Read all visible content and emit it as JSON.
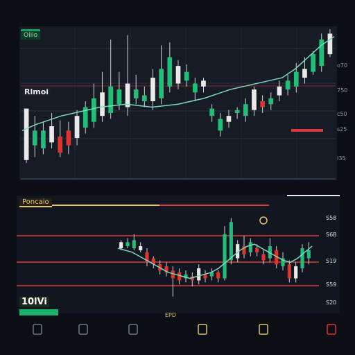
{
  "header": {
    "symbol": "Oiiio",
    "top_price": "Rlmoi",
    "bottom_label": "Poncaio",
    "bottom_price": "10lVi"
  },
  "colors": {
    "up": "#1fbf7a",
    "down": "#e0332b",
    "neutral": "#e9e9e9",
    "gridline": "#d93a3a",
    "highlight": "#e6c66a",
    "background": "#0b0e14"
  },
  "right_axis_top": [
    "o70",
    "750",
    "c50",
    "s25",
    "I35"
  ],
  "right_axis_bottom": [
    "S58",
    "S6B",
    "S19",
    "S59",
    "S20"
  ],
  "x_labels_bottom": [
    "EPD"
  ],
  "icons": [
    "candle-icon",
    "lock-icon",
    "square-marker-icon"
  ],
  "chart_data": [
    {
      "type": "candlestick",
      "title": "",
      "ylim": [
        0,
        100
      ],
      "candles": [
        {
          "o": 10,
          "c": 45,
          "h": 45,
          "l": 8
        },
        {
          "o": 20,
          "c": 30,
          "h": 40,
          "l": 12
        },
        {
          "o": 18,
          "c": 30,
          "h": 36,
          "l": 14
        },
        {
          "o": 22,
          "c": 33,
          "h": 42,
          "l": 18
        },
        {
          "o": 26,
          "c": 15,
          "h": 37,
          "l": 12
        },
        {
          "o": 30,
          "c": 20,
          "h": 36,
          "l": 14
        },
        {
          "o": 25,
          "c": 40,
          "h": 44,
          "l": 20
        },
        {
          "o": 32,
          "c": 46,
          "h": 50,
          "l": 28
        },
        {
          "o": 36,
          "c": 52,
          "h": 62,
          "l": 32
        },
        {
          "o": 40,
          "c": 56,
          "h": 70,
          "l": 36
        },
        {
          "o": 42,
          "c": 60,
          "h": 92,
          "l": 38
        },
        {
          "o": 48,
          "c": 58,
          "h": 70,
          "l": 44
        },
        {
          "o": 46,
          "c": 62,
          "h": 95,
          "l": 40
        },
        {
          "o": 52,
          "c": 58,
          "h": 68,
          "l": 48
        },
        {
          "o": 50,
          "c": 54,
          "h": 60,
          "l": 46
        },
        {
          "o": 50,
          "c": 66,
          "h": 72,
          "l": 44
        },
        {
          "o": 52,
          "c": 72,
          "h": 88,
          "l": 48
        },
        {
          "o": 60,
          "c": 80,
          "h": 90,
          "l": 56
        },
        {
          "o": 62,
          "c": 74,
          "h": 78,
          "l": 58
        },
        {
          "o": 64,
          "c": 70,
          "h": 75,
          "l": 60
        },
        {
          "o": 56,
          "c": 62,
          "h": 66,
          "l": 50
        },
        {
          "o": 60,
          "c": 64,
          "h": 66,
          "l": 56
        },
        {
          "o": 40,
          "c": 45,
          "h": 48,
          "l": 36
        },
        {
          "o": 30,
          "c": 38,
          "h": 42,
          "l": 26
        },
        {
          "o": 36,
          "c": 40,
          "h": 44,
          "l": 32
        },
        {
          "o": 42,
          "c": 44,
          "h": 46,
          "l": 38
        },
        {
          "o": 40,
          "c": 48,
          "h": 52,
          "l": 36
        },
        {
          "o": 44,
          "c": 58,
          "h": 60,
          "l": 40
        },
        {
          "o": 50,
          "c": 46,
          "h": 54,
          "l": 42
        },
        {
          "o": 48,
          "c": 52,
          "h": 56,
          "l": 44
        },
        {
          "o": 54,
          "c": 60,
          "h": 64,
          "l": 50
        },
        {
          "o": 58,
          "c": 64,
          "h": 68,
          "l": 54
        },
        {
          "o": 60,
          "c": 70,
          "h": 76,
          "l": 56
        },
        {
          "o": 66,
          "c": 72,
          "h": 80,
          "l": 62
        },
        {
          "o": 70,
          "c": 82,
          "h": 84,
          "l": 68
        },
        {
          "o": 74,
          "c": 92,
          "h": 96,
          "l": 70
        },
        {
          "o": 82,
          "c": 96,
          "h": 99,
          "l": 80
        }
      ],
      "trend_line": [
        30,
        34,
        37,
        40,
        42,
        44,
        46,
        47,
        48,
        47,
        46,
        47,
        48,
        50,
        52,
        55,
        58,
        60,
        62,
        64,
        66,
        72,
        80,
        88,
        94
      ]
    },
    {
      "type": "candlestick",
      "title": "",
      "ylim": [
        0,
        100
      ],
      "candles": [
        {
          "o": 60,
          "c": 66,
          "h": 68,
          "l": 58
        },
        {
          "o": 62,
          "c": 66,
          "h": 70,
          "l": 60
        },
        {
          "o": 60,
          "c": 68,
          "h": 74,
          "l": 58
        },
        {
          "o": 58,
          "c": 62,
          "h": 66,
          "l": 56
        },
        {
          "o": 56,
          "c": 46,
          "h": 60,
          "l": 42
        },
        {
          "o": 50,
          "c": 44,
          "h": 52,
          "l": 40
        },
        {
          "o": 44,
          "c": 38,
          "h": 48,
          "l": 34
        },
        {
          "o": 42,
          "c": 36,
          "h": 46,
          "l": 32
        },
        {
          "o": 38,
          "c": 30,
          "h": 42,
          "l": 12
        },
        {
          "o": 36,
          "c": 28,
          "h": 40,
          "l": 24
        },
        {
          "o": 30,
          "c": 34,
          "h": 38,
          "l": 26
        },
        {
          "o": 32,
          "c": 28,
          "h": 36,
          "l": 22
        },
        {
          "o": 28,
          "c": 40,
          "h": 44,
          "l": 24
        },
        {
          "o": 34,
          "c": 30,
          "h": 38,
          "l": 26
        },
        {
          "o": 32,
          "c": 36,
          "h": 40,
          "l": 28
        },
        {
          "o": 36,
          "c": 30,
          "h": 38,
          "l": 26
        },
        {
          "o": 30,
          "c": 74,
          "h": 82,
          "l": 28
        },
        {
          "o": 48,
          "c": 86,
          "h": 90,
          "l": 44
        },
        {
          "o": 50,
          "c": 64,
          "h": 68,
          "l": 46
        },
        {
          "o": 62,
          "c": 54,
          "h": 72,
          "l": 50
        },
        {
          "o": 56,
          "c": 66,
          "h": 70,
          "l": 52
        },
        {
          "o": 60,
          "c": 56,
          "h": 64,
          "l": 52
        },
        {
          "o": 54,
          "c": 48,
          "h": 58,
          "l": 44
        },
        {
          "o": 50,
          "c": 62,
          "h": 70,
          "l": 46
        },
        {
          "o": 58,
          "c": 44,
          "h": 62,
          "l": 40
        },
        {
          "o": 42,
          "c": 50,
          "h": 56,
          "l": 38
        },
        {
          "o": 44,
          "c": 30,
          "h": 48,
          "l": 26
        },
        {
          "o": 30,
          "c": 42,
          "h": 46,
          "l": 26
        },
        {
          "o": 40,
          "c": 60,
          "h": 64,
          "l": 36
        },
        {
          "o": 50,
          "c": 58,
          "h": 66,
          "l": 44
        }
      ],
      "trend_line": [
        60,
        58,
        56,
        52,
        48,
        44,
        40,
        36,
        34,
        32,
        30,
        32,
        34,
        36,
        40,
        46,
        52,
        58,
        62,
        64,
        60,
        56,
        52,
        48,
        46,
        50,
        56,
        62
      ]
    }
  ]
}
